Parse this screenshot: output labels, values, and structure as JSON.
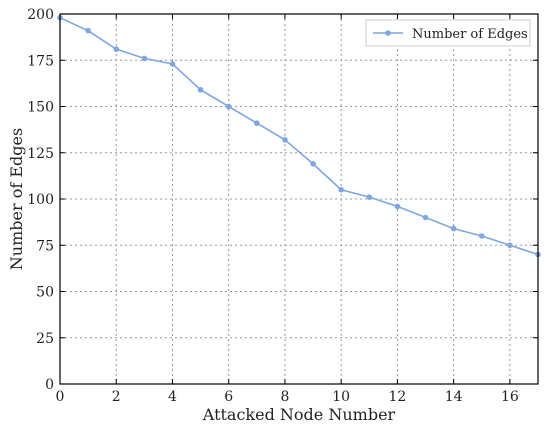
{
  "chart_data": {
    "type": "line",
    "xlabel": "Attacked Node Number",
    "ylabel": "Number of Edges",
    "xlim": [
      0,
      17
    ],
    "ylim": [
      0,
      200
    ],
    "x_ticks": [
      0,
      2,
      4,
      6,
      8,
      10,
      12,
      14,
      16
    ],
    "y_ticks": [
      0,
      25,
      50,
      75,
      100,
      125,
      150,
      175,
      200
    ],
    "grid": true,
    "legend": {
      "position": "top-right",
      "entries": [
        "Number of Edges"
      ]
    },
    "series": [
      {
        "name": "Number of Edges",
        "color": "#7ea6e0",
        "x": [
          0,
          1,
          2,
          3,
          4,
          5,
          6,
          7,
          8,
          9,
          10,
          11,
          12,
          13,
          14,
          15,
          16,
          17
        ],
        "y": [
          198,
          191,
          181,
          176,
          173,
          159,
          150,
          141,
          132,
          119,
          105,
          101,
          96,
          90,
          84,
          80,
          75,
          70
        ]
      }
    ]
  }
}
